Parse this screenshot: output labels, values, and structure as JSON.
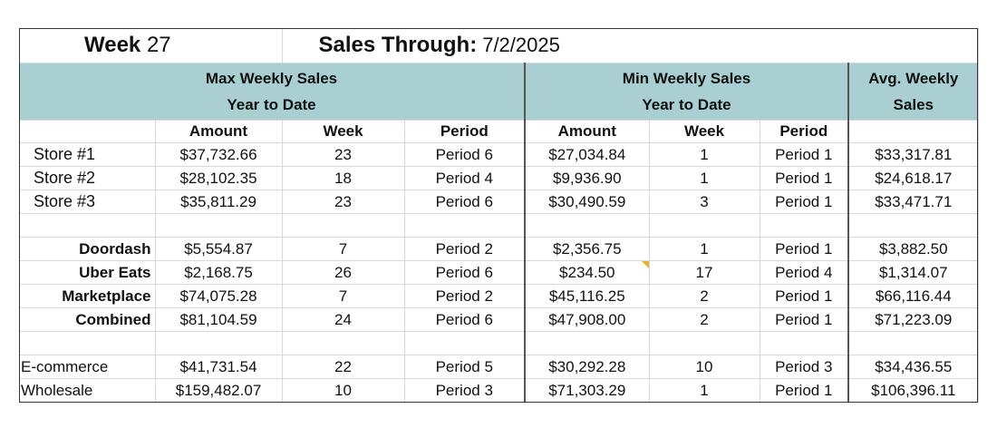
{
  "title": {
    "week_label": "Week",
    "week_number": "27",
    "sales_through_label": "Sales Through:",
    "sales_through_date": "7/2/2025"
  },
  "headers": {
    "max_line1": "Max Weekly Sales",
    "max_line2": "Year to Date",
    "min_line1": "Min Weekly Sales",
    "min_line2": "Year to Date",
    "avg_line1": "Avg. Weekly",
    "avg_line2": "Sales"
  },
  "subheaders": {
    "max_amount": "Amount",
    "max_week": "Week",
    "max_period": "Period",
    "min_amount": "Amount",
    "min_week": "Week",
    "min_period": "Period"
  },
  "rows": [
    {
      "label": "Store #1",
      "max_amount": "$37,732.66",
      "max_week": "23",
      "max_period": "Period 6",
      "min_amount": "$27,034.84",
      "min_week": "1",
      "min_period": "Period 1",
      "avg": "$33,317.81"
    },
    {
      "label": "Store #2",
      "max_amount": "$28,102.35",
      "max_week": "18",
      "max_period": "Period 4",
      "min_amount": "$9,936.90",
      "min_week": "1",
      "min_period": "Period 1",
      "avg": "$24,618.17"
    },
    {
      "label": "Store #3",
      "max_amount": "$35,811.29",
      "max_week": "23",
      "max_period": "Period 6",
      "min_amount": "$30,490.59",
      "min_week": "3",
      "min_period": "Period 1",
      "avg": "$33,471.71"
    },
    {
      "label": "Doordash",
      "max_amount": "$5,554.87",
      "max_week": "7",
      "max_period": "Period 2",
      "min_amount": "$2,356.75",
      "min_week": "1",
      "min_period": "Period 1",
      "avg": "$3,882.50"
    },
    {
      "label": "Uber Eats",
      "max_amount": "$2,168.75",
      "max_week": "26",
      "max_period": "Period 6",
      "min_amount": "$234.50",
      "min_week": "17",
      "min_period": "Period 4",
      "avg": "$1,314.07"
    },
    {
      "label": "Marketplace",
      "max_amount": "$74,075.28",
      "max_week": "7",
      "max_period": "Period 2",
      "min_amount": "$45,116.25",
      "min_week": "2",
      "min_period": "Period 1",
      "avg": "$66,116.44"
    },
    {
      "label": "Combined",
      "max_amount": "$81,104.59",
      "max_week": "24",
      "max_period": "Period 6",
      "min_amount": "$47,908.00",
      "min_week": "2",
      "min_period": "Period 1",
      "avg": "$71,223.09"
    },
    {
      "label": "E-commerce",
      "max_amount": "$41,731.54",
      "max_week": "22",
      "max_period": "Period 5",
      "min_amount": "$30,292.28",
      "min_week": "10",
      "min_period": "Period 3",
      "avg": "$34,436.55"
    },
    {
      "label": "Wholesale",
      "max_amount": "$159,482.07",
      "max_week": "10",
      "max_period": "Period 3",
      "min_amount": "$71,303.29",
      "min_week": "1",
      "min_period": "Period 1",
      "avg": "$106,396.11"
    }
  ],
  "colors": {
    "header_fill": "#a9cfd3",
    "comment_marker": "#e8b230"
  }
}
